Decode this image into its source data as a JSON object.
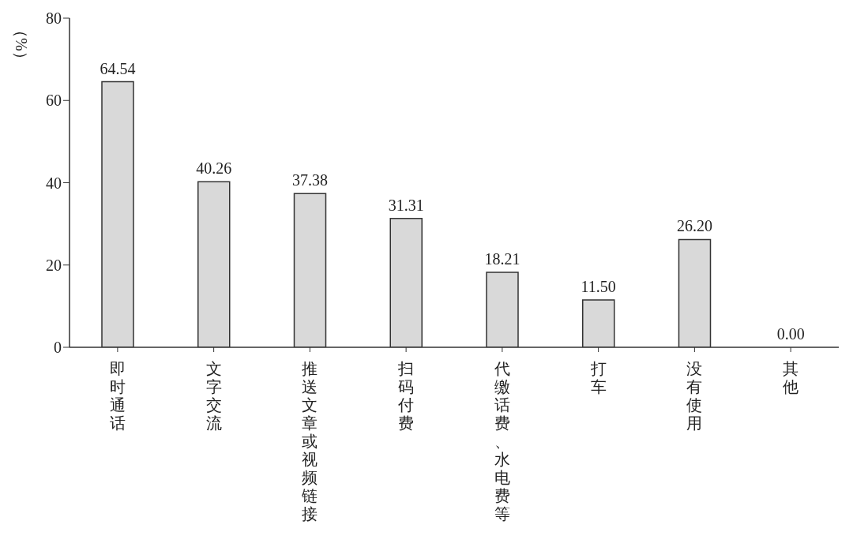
{
  "chart_data": {
    "type": "bar",
    "ylabel": "（%）",
    "categories": [
      "即时通话",
      "文字交流",
      "推送文章或视频链接",
      "扫码付费",
      "代缴话费、水电费等",
      "打车",
      "没有使用",
      "其他"
    ],
    "values": [
      64.54,
      40.26,
      37.38,
      31.31,
      18.21,
      11.5,
      26.2,
      0.0
    ],
    "value_labels": [
      "64.54",
      "40.26",
      "37.38",
      "31.31",
      "18.21",
      "11.50",
      "26.20",
      "0.00"
    ],
    "color": "#d9d9d9",
    "ylim": [
      0,
      80
    ],
    "yticks": [
      0,
      20,
      40,
      60,
      80
    ],
    "grid": false
  }
}
